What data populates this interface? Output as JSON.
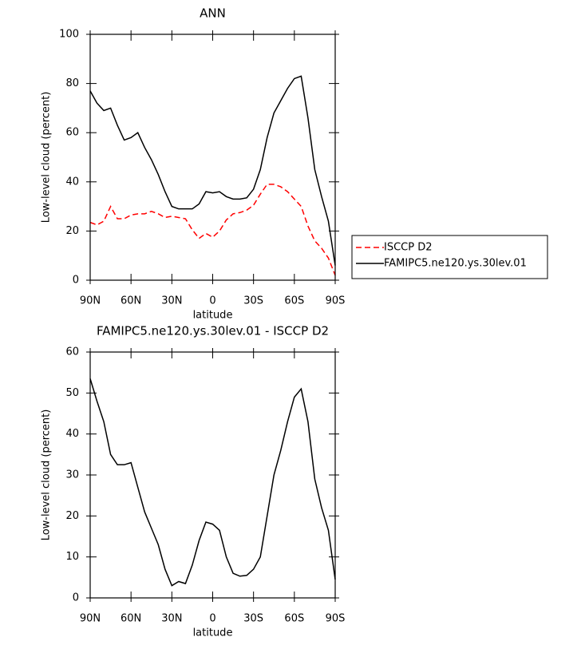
{
  "chart_data": [
    {
      "type": "line",
      "title": "ANN",
      "xlabel": "latitude",
      "ylabel": "Low-level cloud (percent)",
      "x": [
        90,
        85,
        80,
        75,
        70,
        65,
        60,
        55,
        50,
        45,
        40,
        35,
        30,
        25,
        20,
        15,
        10,
        5,
        0,
        -5,
        -10,
        -15,
        -20,
        -25,
        -30,
        -35,
        -40,
        -45,
        -50,
        -55,
        -60,
        -65,
        -70,
        -75,
        -80,
        -85,
        -90
      ],
      "series": [
        {
          "name": "ISCCP D2",
          "color": "#ff0000",
          "dashed": true,
          "values": [
            23.5,
            22.5,
            24,
            30,
            25,
            25,
            26.5,
            27,
            27,
            28,
            27,
            25.5,
            26,
            25.5,
            25,
            20.5,
            17,
            19,
            17.5,
            20,
            24.5,
            27,
            27.5,
            28.5,
            30.5,
            35,
            39,
            39,
            38,
            36,
            33,
            30,
            22,
            16,
            13,
            9,
            2
          ]
        },
        {
          "name": "FAMIPC5.ne120.ys.30lev.01",
          "color": "#000000",
          "dashed": false,
          "values": [
            77,
            72,
            69,
            70,
            63,
            57,
            58,
            60,
            54,
            49,
            43,
            36,
            30,
            29,
            29,
            29,
            31,
            36,
            35.5,
            36,
            34,
            33,
            33,
            33.5,
            37,
            45,
            58,
            68,
            73,
            78,
            82,
            83,
            66,
            45,
            34,
            24,
            6
          ]
        }
      ],
      "xlim": [
        90,
        -90
      ],
      "xticks": [
        {
          "value": 90,
          "label": "90N"
        },
        {
          "value": 60,
          "label": "60N"
        },
        {
          "value": 30,
          "label": "30N"
        },
        0,
        {
          "value": -30,
          "label": "30S"
        },
        {
          "value": -60,
          "label": "60S"
        },
        {
          "value": -90,
          "label": "90S"
        }
      ],
      "ylim": [
        0,
        100
      ],
      "yticks": [
        0,
        20,
        40,
        60,
        80,
        100
      ],
      "legend": "right"
    },
    {
      "type": "line",
      "title": "FAMIPC5.ne120.ys.30lev.01 - ISCCP D2",
      "xlabel": "latitude",
      "ylabel": "Low-level cloud (percent)",
      "x": [
        90,
        85,
        80,
        75,
        70,
        65,
        60,
        55,
        50,
        45,
        40,
        35,
        30,
        25,
        20,
        15,
        10,
        5,
        0,
        -5,
        -10,
        -15,
        -20,
        -25,
        -30,
        -35,
        -40,
        -45,
        -50,
        -55,
        -60,
        -65,
        -70,
        -75,
        -80,
        -85,
        -90
      ],
      "series": [
        {
          "color": "#000000",
          "dashed": false,
          "values": [
            53.5,
            48,
            43,
            35,
            32.5,
            32.5,
            33,
            27,
            21,
            17,
            13,
            7,
            3,
            4,
            3.5,
            8,
            14,
            18.5,
            18,
            16.5,
            10,
            6,
            5.3,
            5.5,
            7,
            10,
            20,
            30,
            36,
            43,
            49,
            51,
            43,
            29,
            22,
            16.5,
            4.5
          ]
        }
      ],
      "xlim": [
        90,
        -90
      ],
      "xticks": [
        {
          "value": 90,
          "label": "90N"
        },
        {
          "value": 60,
          "label": "60N"
        },
        {
          "value": 30,
          "label": "30N"
        },
        0,
        {
          "value": -30,
          "label": "30S"
        },
        {
          "value": -60,
          "label": "60S"
        },
        {
          "value": -90,
          "label": "90S"
        }
      ],
      "ylim": [
        0,
        60
      ],
      "yticks": [
        0,
        10,
        20,
        30,
        40,
        50,
        60
      ]
    }
  ]
}
